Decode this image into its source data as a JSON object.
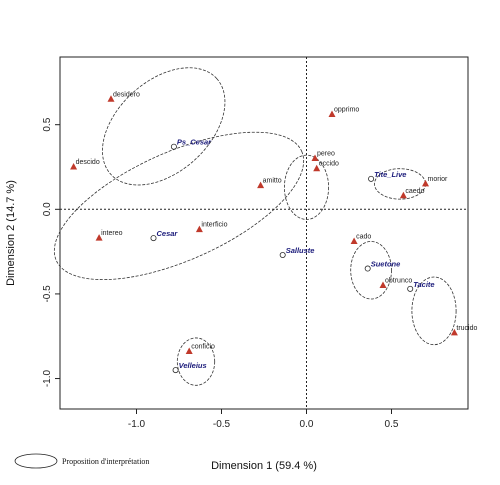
{
  "chart_data": {
    "type": "scatter",
    "title": "",
    "xlabel": "Dimension 1 (59.4 %)",
    "ylabel": "Dimension 2 (14.7 %)",
    "xlim": [
      -1.45,
      0.95
    ],
    "ylim": [
      -1.18,
      0.9
    ],
    "xticks": [
      {
        "v": -1.0,
        "label": "-1.0"
      },
      {
        "v": -0.5,
        "label": "-0.5"
      },
      {
        "v": 0.0,
        "label": "0.0"
      },
      {
        "v": 0.5,
        "label": "0.5"
      }
    ],
    "yticks": [
      {
        "v": 0.5,
        "label": "0.5"
      },
      {
        "v": 0.0,
        "label": "0.0"
      },
      {
        "v": -0.5,
        "label": "-0.5"
      },
      {
        "v": -1.0,
        "label": "-1.0"
      }
    ],
    "grid": false,
    "reference_lines": {
      "x": 0,
      "y": 0,
      "style": "dotted"
    },
    "verbs": [
      {
        "label": "desidero",
        "x": -1.15,
        "y": 0.65
      },
      {
        "label": "opprimo",
        "x": 0.15,
        "y": 0.56
      },
      {
        "label": "descido",
        "x": -1.37,
        "y": 0.25
      },
      {
        "label": "pereo",
        "x": 0.05,
        "y": 0.3
      },
      {
        "label": "occido",
        "x": 0.06,
        "y": 0.24
      },
      {
        "label": "amitto",
        "x": -0.27,
        "y": 0.14
      },
      {
        "label": "morior",
        "x": 0.7,
        "y": 0.15
      },
      {
        "label": "caedo",
        "x": 0.57,
        "y": 0.08
      },
      {
        "label": "interficio",
        "x": -0.63,
        "y": -0.12
      },
      {
        "label": "intereo",
        "x": -1.22,
        "y": -0.17
      },
      {
        "label": "cado",
        "x": 0.28,
        "y": -0.19
      },
      {
        "label": "obtrunco",
        "x": 0.45,
        "y": -0.45
      },
      {
        "label": "trucido",
        "x": 0.87,
        "y": -0.73
      },
      {
        "label": "conficio",
        "x": -0.69,
        "y": -0.84
      }
    ],
    "authors": [
      {
        "label": "Ps_Cesar",
        "x": -0.78,
        "y": 0.37
      },
      {
        "label": "Tite_Live",
        "x": 0.38,
        "y": 0.18
      },
      {
        "label": "Cesar",
        "x": -0.9,
        "y": -0.17
      },
      {
        "label": "Salluste",
        "x": -0.14,
        "y": -0.27
      },
      {
        "label": "Suetone",
        "x": 0.36,
        "y": -0.35
      },
      {
        "label": "Tacite",
        "x": 0.61,
        "y": -0.47
      },
      {
        "label": "Velleius",
        "x": -0.77,
        "y": -0.95
      }
    ],
    "ellipses": [
      {
        "cx": -0.84,
        "cy": 0.49,
        "rx": 0.42,
        "ry": 0.27,
        "rot": -42
      },
      {
        "cx": -0.75,
        "cy": 0.02,
        "rx": 0.79,
        "ry": 0.32,
        "rot": -24
      },
      {
        "cx": 0.0,
        "cy": 0.13,
        "rx": 0.13,
        "ry": 0.19,
        "rot": 0
      },
      {
        "cx": 0.55,
        "cy": 0.15,
        "rx": 0.15,
        "ry": 0.09,
        "rot": 0
      },
      {
        "cx": 0.38,
        "cy": -0.36,
        "rx": 0.12,
        "ry": 0.17,
        "rot": 0
      },
      {
        "cx": 0.75,
        "cy": -0.6,
        "rx": 0.13,
        "ry": 0.2,
        "rot": 0
      },
      {
        "cx": -0.65,
        "cy": -0.9,
        "rx": 0.11,
        "ry": 0.14,
        "rot": 0
      }
    ],
    "colors": {
      "verb": "#c0392b",
      "author": "#2b2b2b"
    },
    "legend": {
      "label": "Proposition d'interprétation",
      "placement": "bottom-left"
    }
  }
}
